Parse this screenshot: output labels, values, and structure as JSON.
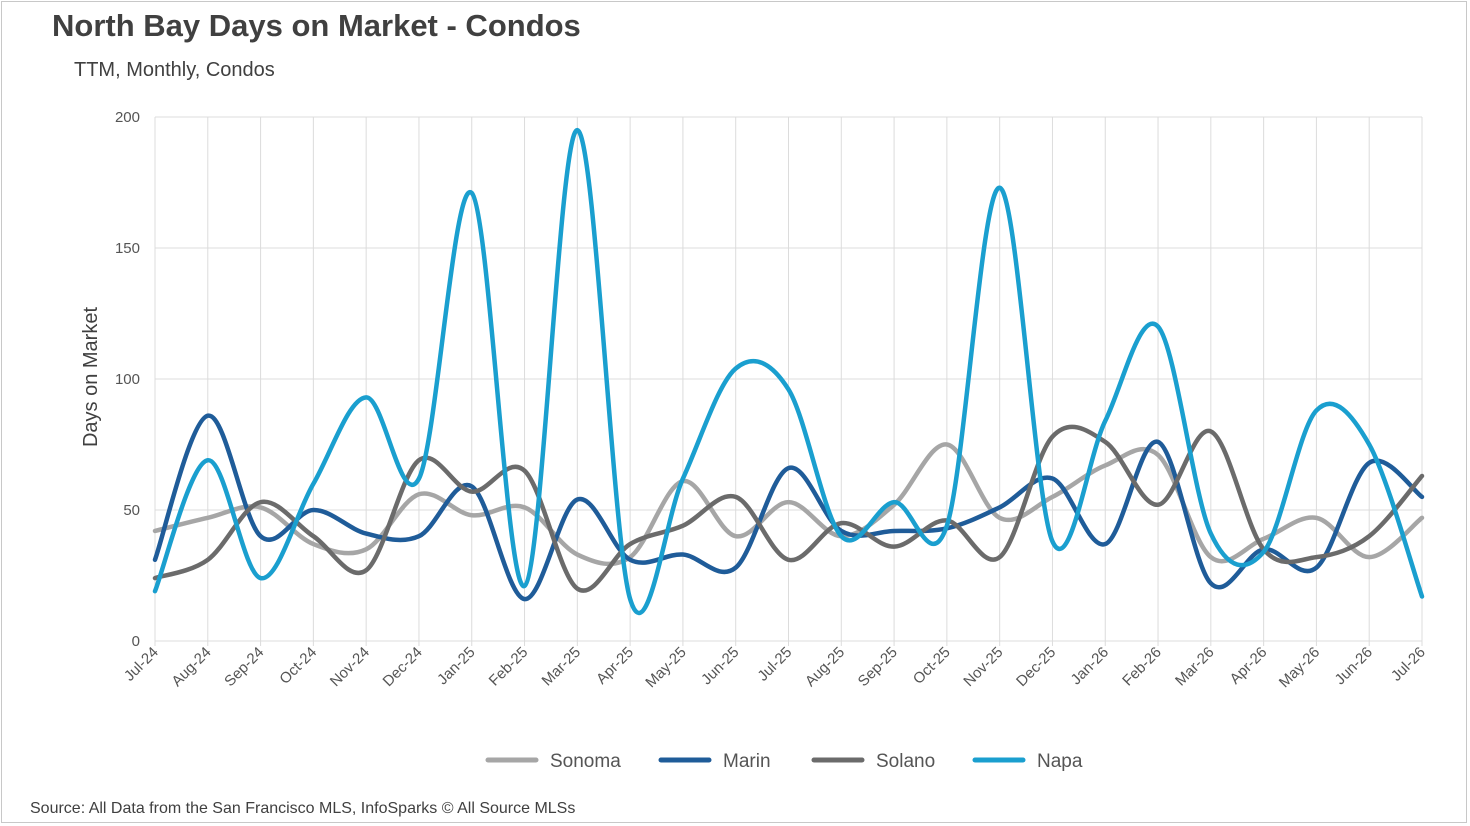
{
  "title": "North Bay Days on Market - Condos",
  "subtitle": "TTM, Monthly, Condos",
  "source": "Source: All Data from the San Francisco MLS, InfoSparks © All Source MLSs",
  "chart_data": {
    "type": "line",
    "title": "North Bay Days on Market - Condos",
    "subtitle": "TTM, Monthly, Condos",
    "xlabel": "",
    "ylabel": "Days on Market",
    "ylim": [
      0,
      200
    ],
    "yticks": [
      0,
      50,
      100,
      150,
      200
    ],
    "grid": true,
    "legend_position": "bottom",
    "curve": "smooth",
    "categories": [
      "Jul-24",
      "Aug-24",
      "Sep-24",
      "Oct-24",
      "Nov-24",
      "Dec-24",
      "Jan-25",
      "Feb-25",
      "Mar-25",
      "Apr-25",
      "May-25",
      "Jun-25",
      "Jul-25",
      "Aug-25",
      "Sep-25",
      "Oct-25",
      "Nov-25",
      "Dec-25",
      "Jan-26",
      "Feb-26",
      "Mar-26",
      "Apr-26",
      "May-26",
      "Jun-26",
      "Jul-26"
    ],
    "series": [
      {
        "name": "Sonoma",
        "color": "#a6a6a6",
        "values": [
          42,
          47,
          51,
          37,
          35,
          56,
          48,
          51,
          33,
          32,
          61,
          40,
          53,
          40,
          52,
          75,
          47,
          55,
          67,
          71,
          32,
          39,
          47,
          32,
          47
        ]
      },
      {
        "name": "Marin",
        "color": "#1f5c99",
        "values": [
          31,
          86,
          40,
          50,
          41,
          40,
          59,
          16,
          54,
          31,
          33,
          28,
          66,
          42,
          42,
          43,
          51,
          62,
          37,
          76,
          22,
          35,
          28,
          68,
          55
        ]
      },
      {
        "name": "Solano",
        "color": "#6b6b6b",
        "values": [
          24,
          31,
          53,
          40,
          27,
          69,
          57,
          65,
          20,
          37,
          44,
          55,
          31,
          45,
          36,
          46,
          32,
          78,
          76,
          52,
          80,
          35,
          32,
          40,
          63
        ]
      },
      {
        "name": "Napa",
        "color": "#1a9fcf",
        "values": [
          19,
          69,
          24,
          60,
          93,
          62,
          171,
          21,
          195,
          16,
          62,
          104,
          96,
          40,
          53,
          44,
          173,
          38,
          84,
          120,
          41,
          34,
          88,
          75,
          17
        ]
      }
    ]
  }
}
